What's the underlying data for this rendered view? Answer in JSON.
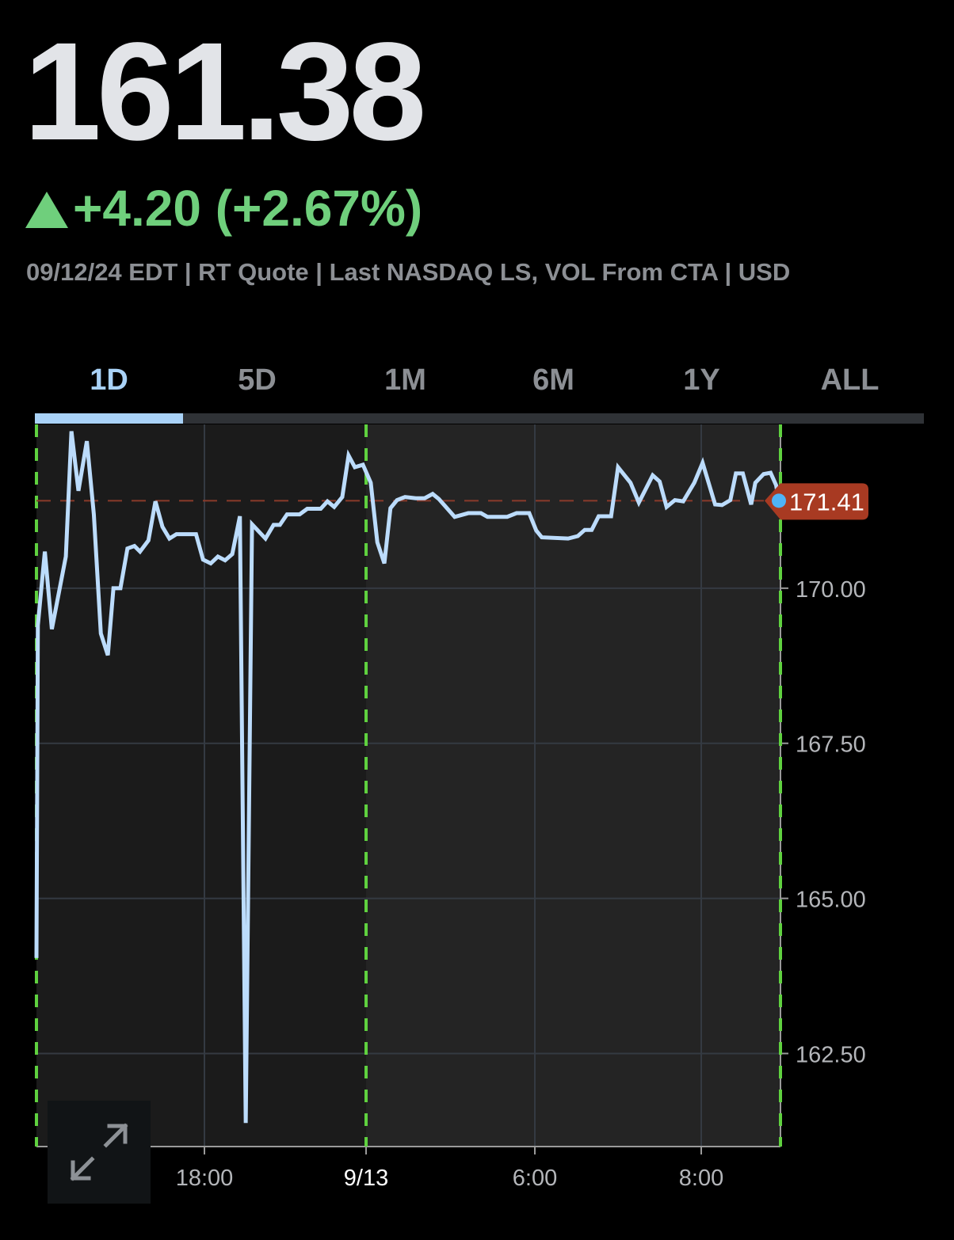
{
  "quote": {
    "price": "161.38",
    "change": "+4.20 (+2.67%)",
    "direction": "up",
    "meta": "09/12/24 EDT | RT Quote | Last NASDAQ LS, VOL From CTA | USD"
  },
  "tabs": [
    {
      "label": "1D",
      "active": true
    },
    {
      "label": "5D",
      "active": false
    },
    {
      "label": "1M",
      "active": false
    },
    {
      "label": "6M",
      "active": false
    },
    {
      "label": "1Y",
      "active": false
    },
    {
      "label": "ALL",
      "active": false
    }
  ],
  "colors": {
    "line": "#bcdcfc",
    "up": "#6fcf7c",
    "last_price_tag": "#a83a22",
    "session_divider": "#5fd13f",
    "last_dot": "#4fb3f6"
  },
  "chart_data": {
    "type": "line",
    "ylim": [
      161.0,
      172.64
    ],
    "yticks": [
      "170.00",
      "167.50",
      "165.00",
      "162.50"
    ],
    "ytick_values": [
      170,
      167.5,
      165,
      162.5
    ],
    "xticks": [
      "18:00",
      "9/13",
      "6:00",
      "8:00"
    ],
    "grid": true,
    "last_price_label": "171.41",
    "last_price": 171.41,
    "session_dividers": [
      "16:00",
      "00:00",
      "09:00"
    ],
    "points": [
      [
        "16:00",
        164.04
      ],
      [
        "16:01",
        169.4
      ],
      [
        "16:06",
        170.59
      ],
      [
        "16:11",
        169.34
      ],
      [
        "16:21",
        170.51
      ],
      [
        "16:25",
        172.53
      ],
      [
        "16:30",
        171.57
      ],
      [
        "16:36",
        172.37
      ],
      [
        "16:41",
        171.19
      ],
      [
        "16:46",
        169.27
      ],
      [
        "16:51",
        168.92
      ],
      [
        "16:55",
        170.0
      ],
      [
        "17:00",
        170.0
      ],
      [
        "17:05",
        170.64
      ],
      [
        "17:10",
        170.68
      ],
      [
        "17:14",
        170.59
      ],
      [
        "17:20",
        170.77
      ],
      [
        "17:25",
        171.4
      ],
      [
        "17:30",
        170.99
      ],
      [
        "17:35",
        170.8
      ],
      [
        "17:40",
        170.87
      ],
      [
        "17:54",
        170.87
      ],
      [
        "17:59",
        170.46
      ],
      [
        "18:14",
        170.4
      ],
      [
        "18:30",
        170.51
      ],
      [
        "18:46",
        170.45
      ],
      [
        "19:02",
        170.55
      ],
      [
        "19:19",
        171.16
      ],
      [
        "19:32",
        161.38
      ],
      [
        "19:46",
        171.03
      ],
      [
        "20:16",
        170.8
      ],
      [
        "20:34",
        171.02
      ],
      [
        "20:48",
        171.02
      ],
      [
        "21:04",
        171.19
      ],
      [
        "21:32",
        171.19
      ],
      [
        "21:49",
        171.28
      ],
      [
        "22:19",
        171.28
      ],
      [
        "22:34",
        171.4
      ],
      [
        "22:49",
        171.31
      ],
      [
        "23:07",
        171.47
      ],
      [
        "23:21",
        172.14
      ],
      [
        "23:35",
        171.95
      ],
      [
        "23:53",
        171.99
      ],
      [
        "00:10",
        171.7
      ],
      [
        "00:24",
        170.74
      ],
      [
        "00:39",
        170.4
      ],
      [
        "00:52",
        171.29
      ],
      [
        "01:06",
        171.42
      ],
      [
        "01:23",
        171.47
      ],
      [
        "01:46",
        171.45
      ],
      [
        "02:05",
        171.45
      ],
      [
        "02:22",
        171.52
      ],
      [
        "02:35",
        171.44
      ],
      [
        "03:09",
        171.15
      ],
      [
        "03:38",
        171.21
      ],
      [
        "04:05",
        171.21
      ],
      [
        "04:19",
        171.15
      ],
      [
        "05:01",
        171.15
      ],
      [
        "05:21",
        171.21
      ],
      [
        "05:48",
        171.21
      ],
      [
        "06:01",
        170.93
      ],
      [
        "06:05",
        170.82
      ],
      [
        "06:24",
        170.8
      ],
      [
        "06:31",
        170.84
      ],
      [
        "06:36",
        170.94
      ],
      [
        "06:41",
        170.94
      ],
      [
        "06:46",
        171.16
      ],
      [
        "06:55",
        171.16
      ],
      [
        "07:00",
        171.95
      ],
      [
        "07:09",
        171.7
      ],
      [
        "07:15",
        171.38
      ],
      [
        "07:25",
        171.82
      ],
      [
        "07:30",
        171.72
      ],
      [
        "07:35",
        171.31
      ],
      [
        "07:41",
        171.42
      ],
      [
        "07:47",
        171.4
      ],
      [
        "07:55",
        171.7
      ],
      [
        "08:01",
        172.02
      ],
      [
        "08:10",
        171.35
      ],
      [
        "08:15",
        171.34
      ],
      [
        "08:21",
        171.42
      ],
      [
        "08:25",
        171.85
      ],
      [
        "08:30",
        171.85
      ],
      [
        "08:36",
        171.35
      ],
      [
        "08:39",
        171.7
      ],
      [
        "08:45",
        171.84
      ],
      [
        "08:50",
        171.86
      ],
      [
        "08:54",
        171.66
      ],
      [
        "08:56",
        171.41
      ]
    ]
  }
}
